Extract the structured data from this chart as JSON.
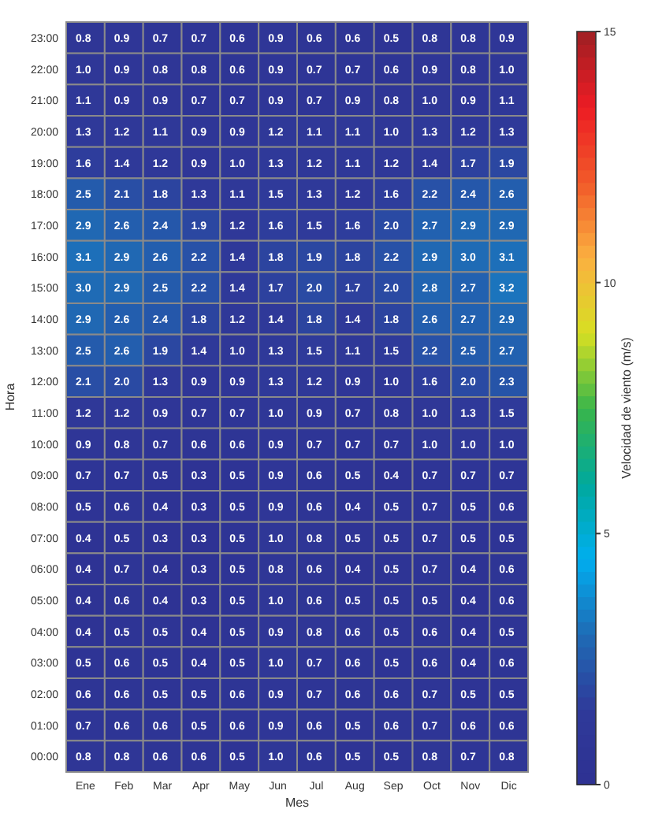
{
  "chart_data": {
    "type": "heatmap",
    "xlabel": "Mes",
    "ylabel": "Hora",
    "clabel": "Velocidad de viento (m/s)",
    "categories": [
      "Ene",
      "Feb",
      "Mar",
      "Apr",
      "May",
      "Jun",
      "Jul",
      "Aug",
      "Sep",
      "Oct",
      "Nov",
      "Dic"
    ],
    "y_categories": [
      "23:00",
      "22:00",
      "21:00",
      "20:00",
      "19:00",
      "18:00",
      "17:00",
      "16:00",
      "15:00",
      "14:00",
      "13:00",
      "12:00",
      "11:00",
      "10:00",
      "09:00",
      "08:00",
      "07:00",
      "06:00",
      "05:00",
      "04:00",
      "03:00",
      "02:00",
      "01:00",
      "00:00"
    ],
    "cells": [
      [
        0.8,
        0.9,
        0.7,
        0.7,
        0.6,
        0.9,
        0.6,
        0.6,
        0.5,
        0.8,
        0.8,
        0.9
      ],
      [
        1.0,
        0.9,
        0.8,
        0.8,
        0.6,
        0.9,
        0.7,
        0.7,
        0.6,
        0.9,
        0.8,
        1.0
      ],
      [
        1.1,
        0.9,
        0.9,
        0.7,
        0.7,
        0.9,
        0.7,
        0.9,
        0.8,
        1.0,
        0.9,
        1.1
      ],
      [
        1.3,
        1.2,
        1.1,
        0.9,
        0.9,
        1.2,
        1.1,
        1.1,
        1.0,
        1.3,
        1.2,
        1.3
      ],
      [
        1.6,
        1.4,
        1.2,
        0.9,
        1.0,
        1.3,
        1.2,
        1.1,
        1.2,
        1.4,
        1.7,
        1.9
      ],
      [
        2.5,
        2.1,
        1.8,
        1.3,
        1.1,
        1.5,
        1.3,
        1.2,
        1.6,
        2.2,
        2.4,
        2.6
      ],
      [
        2.9,
        2.6,
        2.4,
        1.9,
        1.2,
        1.6,
        1.5,
        1.6,
        2.0,
        2.7,
        2.9,
        2.9
      ],
      [
        3.1,
        2.9,
        2.6,
        2.2,
        1.4,
        1.8,
        1.9,
        1.8,
        2.2,
        2.9,
        3.0,
        3.1
      ],
      [
        3.0,
        2.9,
        2.5,
        2.2,
        1.4,
        1.7,
        2.0,
        1.7,
        2.0,
        2.8,
        2.7,
        3.2
      ],
      [
        2.9,
        2.6,
        2.4,
        1.8,
        1.2,
        1.4,
        1.8,
        1.4,
        1.8,
        2.6,
        2.7,
        2.9
      ],
      [
        2.5,
        2.6,
        1.9,
        1.4,
        1.0,
        1.3,
        1.5,
        1.1,
        1.5,
        2.2,
        2.5,
        2.7
      ],
      [
        2.1,
        2.0,
        1.3,
        0.9,
        0.9,
        1.3,
        1.2,
        0.9,
        1.0,
        1.6,
        2.0,
        2.3
      ],
      [
        1.2,
        1.2,
        0.9,
        0.7,
        0.7,
        1.0,
        0.9,
        0.7,
        0.8,
        1.0,
        1.3,
        1.5
      ],
      [
        0.9,
        0.8,
        0.7,
        0.6,
        0.6,
        0.9,
        0.7,
        0.7,
        0.7,
        1.0,
        1.0,
        1.0
      ],
      [
        0.7,
        0.7,
        0.5,
        0.3,
        0.5,
        0.9,
        0.6,
        0.5,
        0.4,
        0.7,
        0.7,
        0.7
      ],
      [
        0.5,
        0.6,
        0.4,
        0.3,
        0.5,
        0.9,
        0.6,
        0.4,
        0.5,
        0.7,
        0.5,
        0.6
      ],
      [
        0.4,
        0.5,
        0.3,
        0.3,
        0.5,
        1.0,
        0.8,
        0.5,
        0.5,
        0.7,
        0.5,
        0.5
      ],
      [
        0.4,
        0.7,
        0.4,
        0.3,
        0.5,
        0.8,
        0.6,
        0.4,
        0.5,
        0.7,
        0.4,
        0.6
      ],
      [
        0.4,
        0.6,
        0.4,
        0.3,
        0.5,
        1.0,
        0.6,
        0.5,
        0.5,
        0.5,
        0.4,
        0.6
      ],
      [
        0.4,
        0.5,
        0.5,
        0.4,
        0.5,
        0.9,
        0.8,
        0.6,
        0.5,
        0.6,
        0.4,
        0.5
      ],
      [
        0.5,
        0.6,
        0.5,
        0.4,
        0.5,
        1.0,
        0.7,
        0.6,
        0.5,
        0.6,
        0.4,
        0.6
      ],
      [
        0.6,
        0.6,
        0.5,
        0.5,
        0.6,
        0.9,
        0.7,
        0.6,
        0.6,
        0.7,
        0.5,
        0.5
      ],
      [
        0.7,
        0.6,
        0.6,
        0.5,
        0.6,
        0.9,
        0.6,
        0.5,
        0.6,
        0.7,
        0.6,
        0.6
      ],
      [
        0.8,
        0.8,
        0.6,
        0.6,
        0.5,
        1.0,
        0.6,
        0.5,
        0.5,
        0.8,
        0.7,
        0.8
      ]
    ],
    "cell_labels": [
      [
        "0.8",
        "0.9",
        "0.7",
        "0.7",
        "0.6",
        "0.9",
        "0.6",
        "0.6",
        "0.5",
        "0.8",
        "0.8",
        "0.9"
      ],
      [
        "1.0",
        "0.9",
        "0.8",
        "0.8",
        "0.6",
        "0.9",
        "0.7",
        "0.7",
        "0.6",
        "0.9",
        "0.8",
        "1.0"
      ],
      [
        "1.1",
        "0.9",
        "0.9",
        "0.7",
        "0.7",
        "0.9",
        "0.7",
        "0.9",
        "0.8",
        "1.0",
        "0.9",
        "1.1"
      ],
      [
        "1.3",
        "1.2",
        "1.1",
        "0.9",
        "0.9",
        "1.2",
        "1.1",
        "1.1",
        "1.0",
        "1.3",
        "1.2",
        "1.3"
      ],
      [
        "1.6",
        "1.4",
        "1.2",
        "0.9",
        "1.0",
        "1.3",
        "1.2",
        "1.1",
        "1.2",
        "1.4",
        "1.7",
        "1.9"
      ],
      [
        "2.5",
        "2.1",
        "1.8",
        "1.3",
        "1.1",
        "1.5",
        "1.3",
        "1.2",
        "1.6",
        "2.2",
        "2.4",
        "2.6"
      ],
      [
        "2.9",
        "2.6",
        "2.4",
        "1.9",
        "1.2",
        "1.6",
        "1.5",
        "1.6",
        "2.0",
        "2.7",
        "2.9",
        "2.9"
      ],
      [
        "3.1",
        "2.9",
        "2.6",
        "2.2",
        "1.4",
        "1.8",
        "1.9",
        "1.8",
        "2.2",
        "2.9",
        "3.0",
        "3.1"
      ],
      [
        "3.0",
        "2.9",
        "2.5",
        "2.2",
        "1.4",
        "1.7",
        "2.0",
        "1.7",
        "2.0",
        "2.8",
        "2.7",
        "3.2"
      ],
      [
        "2.9",
        "2.6",
        "2.4",
        "1.8",
        "1.2",
        "1.4",
        "1.8",
        "1.4",
        "1.8",
        "2.6",
        "2.7",
        "2.9"
      ],
      [
        "2.5",
        "2.6",
        "1.9",
        "1.4",
        "1.0",
        "1.3",
        "1.5",
        "1.1",
        "1.5",
        "2.2",
        "2.5",
        "2.7"
      ],
      [
        "2.1",
        "2.0",
        "1.3",
        "0.9",
        "0.9",
        "1.3",
        "1.2",
        "0.9",
        "1.0",
        "1.6",
        "2.0",
        "2.3"
      ],
      [
        "1.2",
        "1.2",
        "0.9",
        "0.7",
        "0.7",
        "1.0",
        "0.9",
        "0.7",
        "0.8",
        "1.0",
        "1.3",
        "1.5"
      ],
      [
        "0.9",
        "0.8",
        "0.7",
        "0.6",
        "0.6",
        "0.9",
        "0.7",
        "0.7",
        "0.7",
        "1.0",
        "1.0",
        "1.0"
      ],
      [
        "0.7",
        "0.7",
        "0.5",
        "0.3",
        "0.5",
        "0.9",
        "0.6",
        "0.5",
        "0.4",
        "0.7",
        "0.7",
        "0.7"
      ],
      [
        "0.5",
        "0.6",
        "0.4",
        "0.3",
        "0.5",
        "0.9",
        "0.6",
        "0.4",
        "0.5",
        "0.7",
        "0.5",
        "0.6"
      ],
      [
        "0.4",
        "0.5",
        "0.3",
        "0.3",
        "0.5",
        "1.0",
        "0.8",
        "0.5",
        "0.5",
        "0.7",
        "0.5",
        "0.5"
      ],
      [
        "0.4",
        "0.7",
        "0.4",
        "0.3",
        "0.5",
        "0.8",
        "0.6",
        "0.4",
        "0.5",
        "0.7",
        "0.4",
        "0.6"
      ],
      [
        "0.4",
        "0.6",
        "0.4",
        "0.3",
        "0.5",
        "1.0",
        "0.6",
        "0.5",
        "0.5",
        "0.5",
        "0.4",
        "0.6"
      ],
      [
        "0.4",
        "0.5",
        "0.5",
        "0.4",
        "0.5",
        "0.9",
        "0.8",
        "0.6",
        "0.5",
        "0.6",
        "0.4",
        "0.5"
      ],
      [
        "0.5",
        "0.6",
        "0.5",
        "0.4",
        "0.5",
        "1.0",
        "0.7",
        "0.6",
        "0.5",
        "0.6",
        "0.4",
        "0.6"
      ],
      [
        "0.6",
        "0.6",
        "0.5",
        "0.5",
        "0.6",
        "0.9",
        "0.7",
        "0.6",
        "0.6",
        "0.7",
        "0.5",
        "0.5"
      ],
      [
        "0.7",
        "0.6",
        "0.6",
        "0.5",
        "0.6",
        "0.9",
        "0.6",
        "0.5",
        "0.6",
        "0.7",
        "0.6",
        "0.6"
      ],
      [
        "0.8",
        "0.8",
        "0.6",
        "0.6",
        "0.5",
        "1.0",
        "0.6",
        "0.5",
        "0.5",
        "0.8",
        "0.7",
        "0.8"
      ]
    ],
    "data_labels": true,
    "clim": [
      0,
      15
    ],
    "cticks": [
      0,
      5,
      10,
      15
    ]
  }
}
